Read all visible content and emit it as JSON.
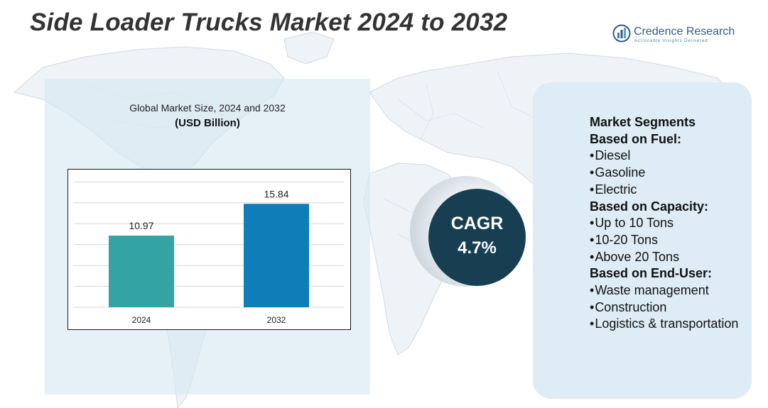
{
  "title": "Side Loader Trucks Market 2024 to 2032",
  "logo": {
    "name": "Credence Research",
    "tagline": "Actionable Insights Delivered"
  },
  "chart_data": {
    "type": "bar",
    "title": "Global Market Size, 2024 and 2032",
    "unit_label": "(USD Billion)",
    "categories": [
      "2024",
      "2032"
    ],
    "values": [
      10.97,
      15.84
    ],
    "value_labels": [
      "10.97",
      "15.84"
    ],
    "colors": [
      "#33a3a3",
      "#0e7db8"
    ],
    "ylim": [
      0,
      20
    ],
    "grid": true,
    "legend": "none",
    "xlabel": "",
    "ylabel": ""
  },
  "cagr": {
    "label": "CAGR",
    "value": "4.7%"
  },
  "segments": {
    "heading": "Market Segments",
    "fuel_heading": "Based on Fuel:",
    "fuel_1": "Diesel",
    "fuel_2": "Gasoline",
    "fuel_3": "Electric",
    "capacity_heading": "Based on Capacity:",
    "capacity_1": "Up to 10 Tons",
    "capacity_2": "10-20 Tons",
    "capacity_3": "Above 20 Tons",
    "enduser_heading": "Based on End-User:",
    "enduser_1": "Waste management",
    "enduser_2": "Construction",
    "enduser_3": "Logistics & transportation",
    "bullet": "•"
  }
}
